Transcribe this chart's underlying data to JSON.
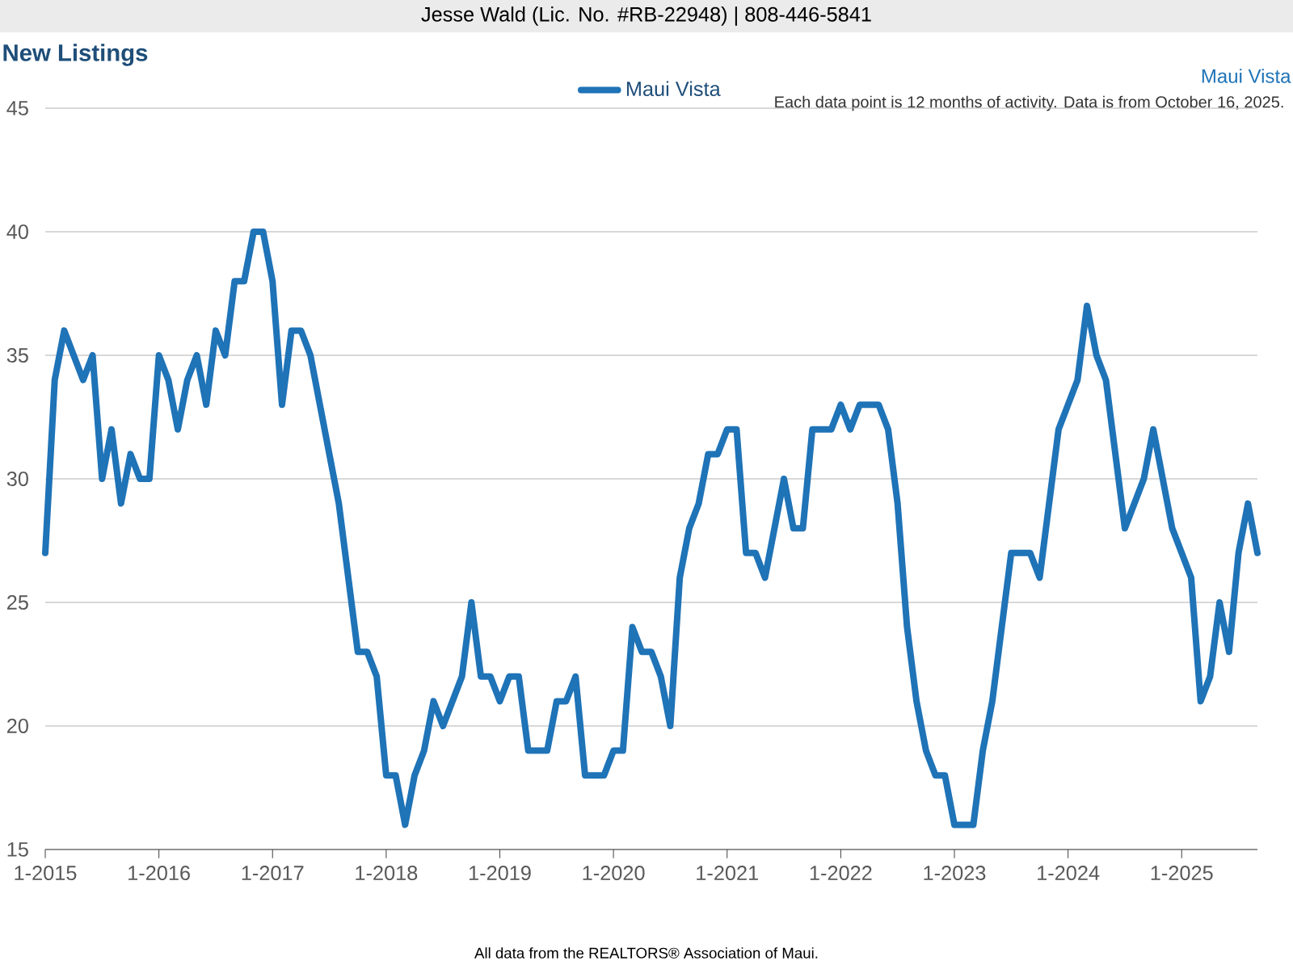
{
  "chart_data": {
    "type": "line",
    "title": "New Listings",
    "annotations": [
      "Jesse Wald (Lic. No. #RB-22948) | 808-446-5841",
      "Maui Vista",
      "Each data point is 12 months of activity. Data is from October 16, 2025.",
      "All data from the REALTORS® Association of Maui."
    ],
    "x": [
      "2015-01",
      "2015-02",
      "2015-03",
      "2015-04",
      "2015-05",
      "2015-06",
      "2015-07",
      "2015-08",
      "2015-09",
      "2015-10",
      "2015-11",
      "2015-12",
      "2016-01",
      "2016-02",
      "2016-03",
      "2016-04",
      "2016-05",
      "2016-06",
      "2016-07",
      "2016-08",
      "2016-09",
      "2016-10",
      "2016-11",
      "2016-12",
      "2017-01",
      "2017-02",
      "2017-03",
      "2017-04",
      "2017-05",
      "2017-06",
      "2017-07",
      "2017-08",
      "2017-09",
      "2017-10",
      "2017-11",
      "2017-12",
      "2018-01",
      "2018-02",
      "2018-03",
      "2018-04",
      "2018-05",
      "2018-06",
      "2018-07",
      "2018-08",
      "2018-09",
      "2018-10",
      "2018-11",
      "2018-12",
      "2019-01",
      "2019-02",
      "2019-03",
      "2019-04",
      "2019-05",
      "2019-06",
      "2019-07",
      "2019-08",
      "2019-09",
      "2019-10",
      "2019-11",
      "2019-12",
      "2020-01",
      "2020-02",
      "2020-03",
      "2020-04",
      "2020-05",
      "2020-06",
      "2020-07",
      "2020-08",
      "2020-09",
      "2020-10",
      "2020-11",
      "2020-12",
      "2021-01",
      "2021-02",
      "2021-03",
      "2021-04",
      "2021-05",
      "2021-06",
      "2021-07",
      "2021-08",
      "2021-09",
      "2021-10",
      "2021-11",
      "2021-12",
      "2022-01",
      "2022-02",
      "2022-03",
      "2022-04",
      "2022-05",
      "2022-06",
      "2022-07",
      "2022-08",
      "2022-09",
      "2022-10",
      "2022-11",
      "2022-12",
      "2023-01",
      "2023-02",
      "2023-03",
      "2023-04",
      "2023-05",
      "2023-06",
      "2023-07",
      "2023-08",
      "2023-09",
      "2023-10",
      "2023-11",
      "2023-12",
      "2024-01",
      "2024-02",
      "2024-03",
      "2024-04",
      "2024-05",
      "2024-06",
      "2024-07",
      "2024-08",
      "2024-09",
      "2024-10",
      "2024-11",
      "2024-12",
      "2025-01",
      "2025-02",
      "2025-03",
      "2025-04",
      "2025-05",
      "2025-06",
      "2025-07",
      "2025-08",
      "2025-09"
    ],
    "series": [
      {
        "name": "Maui Vista",
        "color": "#1f73b7",
        "values": [
          27,
          34,
          36,
          35,
          34,
          35,
          30,
          32,
          29,
          31,
          30,
          30,
          35,
          34,
          32,
          34,
          35,
          33,
          36,
          35,
          38,
          38,
          40,
          40,
          38,
          33,
          36,
          36,
          35,
          33,
          31,
          29,
          26,
          23,
          23,
          22,
          18,
          18,
          16,
          18,
          19,
          21,
          20,
          21,
          22,
          25,
          22,
          22,
          21,
          22,
          22,
          19,
          19,
          19,
          21,
          21,
          22,
          18,
          18,
          18,
          19,
          19,
          24,
          23,
          23,
          22,
          20,
          26,
          28,
          29,
          31,
          31,
          32,
          32,
          27,
          27,
          26,
          28,
          30,
          28,
          28,
          32,
          32,
          32,
          33,
          32,
          33,
          33,
          33,
          32,
          29,
          24,
          21,
          19,
          18,
          18,
          16,
          16,
          16,
          19,
          21,
          24,
          27,
          27,
          27,
          26,
          29,
          32,
          33,
          34,
          37,
          35,
          34,
          31,
          28,
          29,
          30,
          32,
          30,
          28,
          27,
          26,
          21,
          22,
          25,
          23,
          27,
          29,
          27
        ]
      }
    ],
    "xlim": [
      "2015-01",
      "2025-09"
    ],
    "xticks": [
      {
        "value": "2015-01",
        "label": "1-2015"
      },
      {
        "value": "2016-01",
        "label": "1-2016"
      },
      {
        "value": "2017-01",
        "label": "1-2017"
      },
      {
        "value": "2018-01",
        "label": "1-2018"
      },
      {
        "value": "2019-01",
        "label": "1-2019"
      },
      {
        "value": "2020-01",
        "label": "1-2020"
      },
      {
        "value": "2021-01",
        "label": "1-2021"
      },
      {
        "value": "2022-01",
        "label": "1-2022"
      },
      {
        "value": "2023-01",
        "label": "1-2023"
      },
      {
        "value": "2024-01",
        "label": "1-2024"
      },
      {
        "value": "2025-01",
        "label": "1-2025"
      }
    ],
    "ylim": [
      15,
      45
    ],
    "yticks": [
      15,
      20,
      25,
      30,
      35,
      40,
      45
    ],
    "grid": "y",
    "legend": "top",
    "marker": "none",
    "line_style": "solid"
  }
}
